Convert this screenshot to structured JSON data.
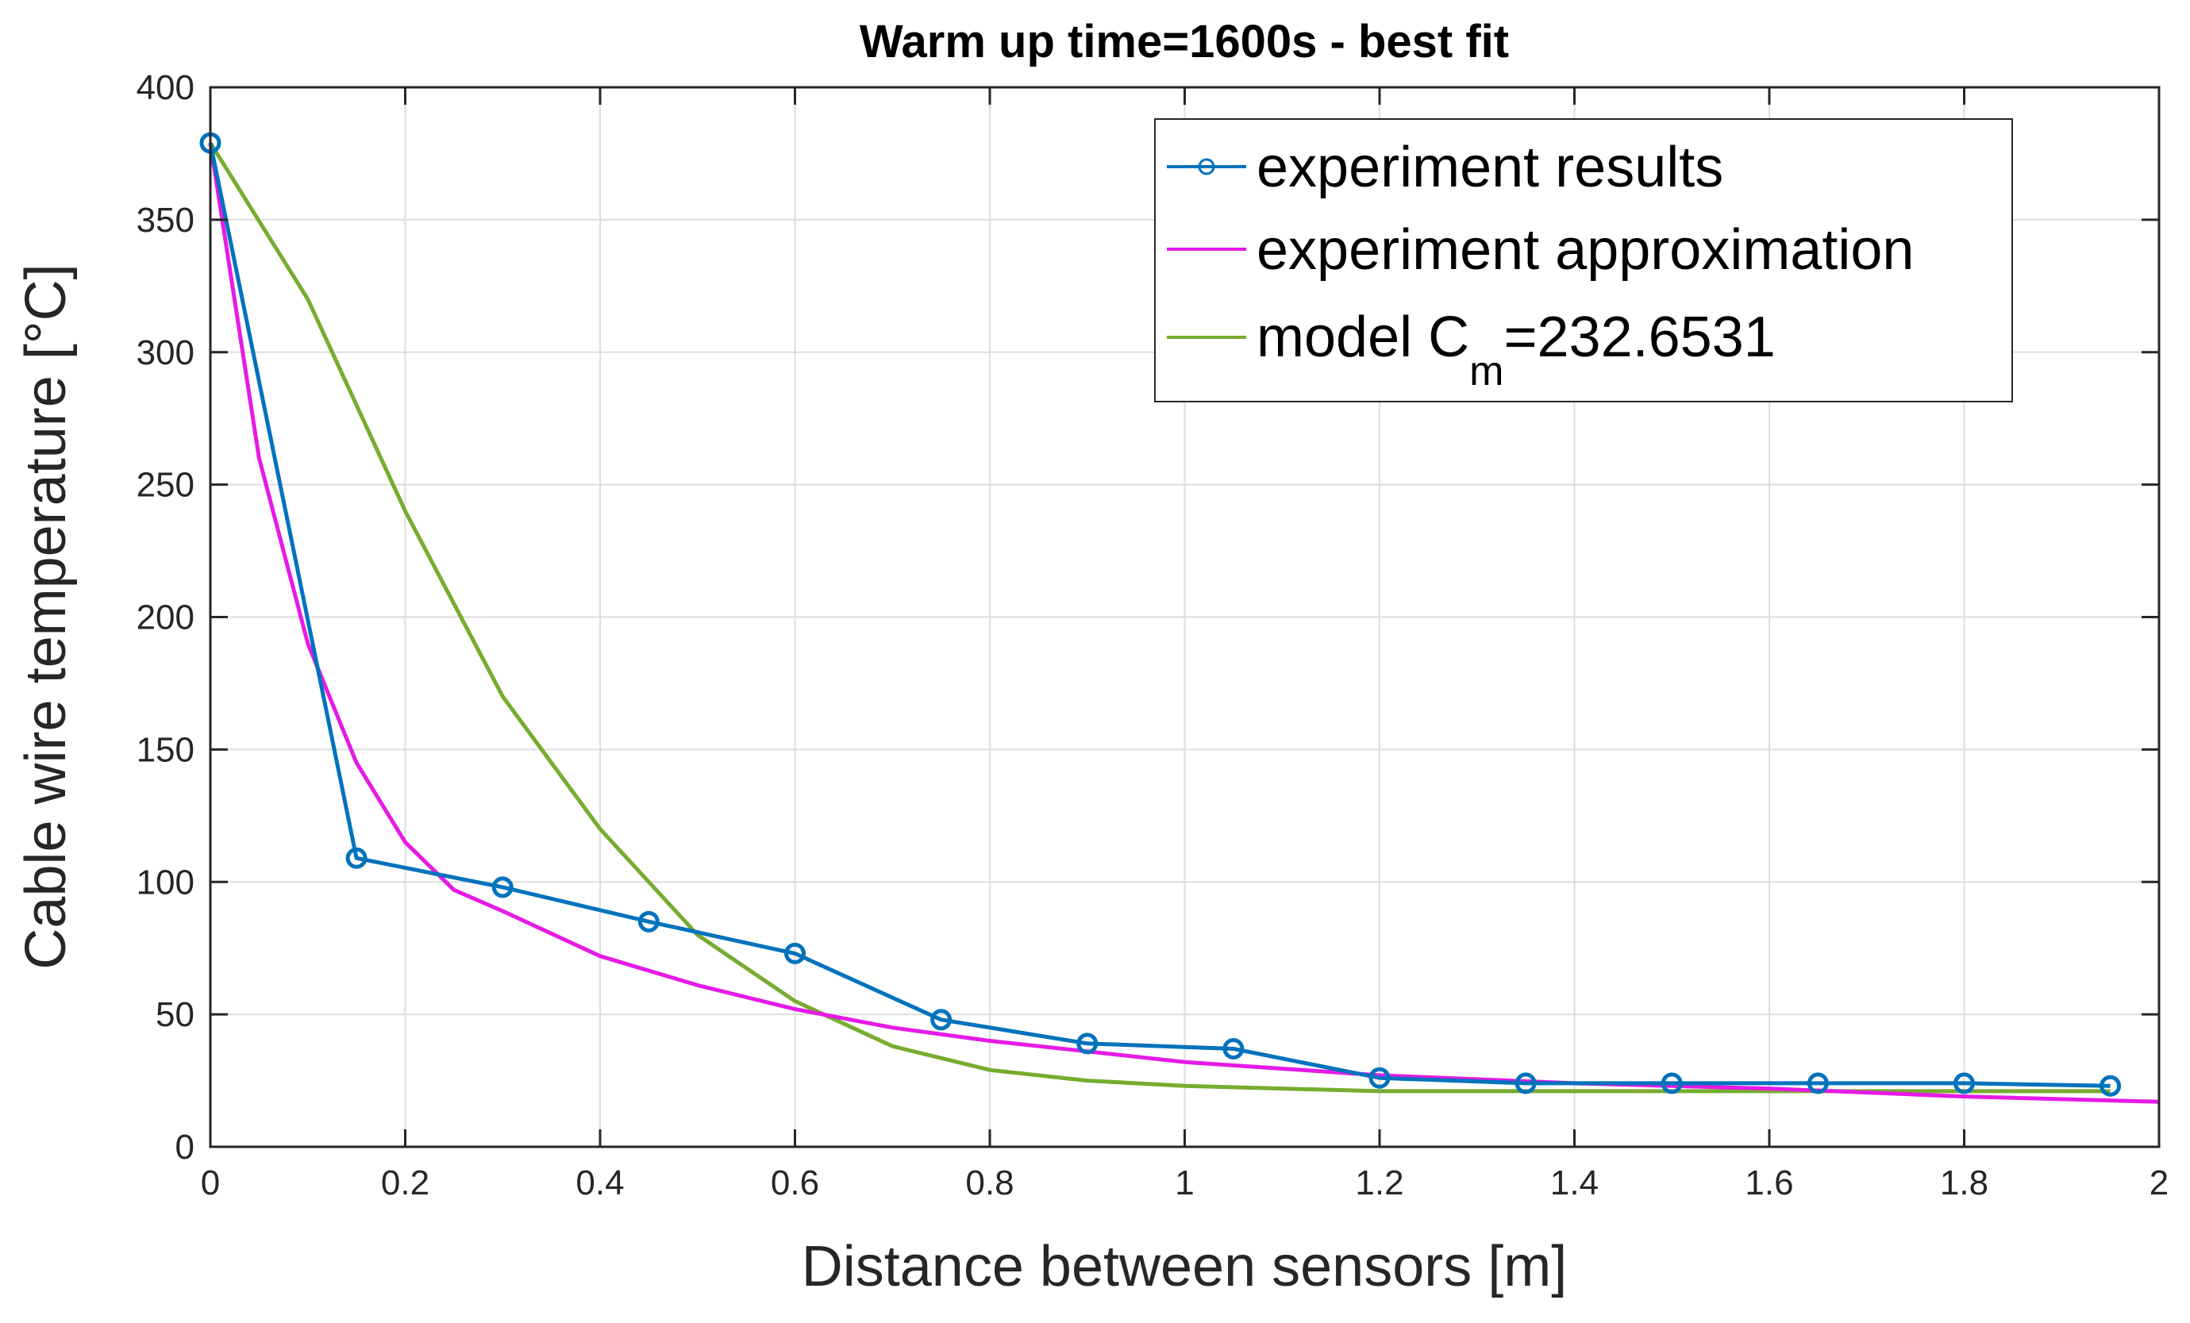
{
  "chart_data": {
    "type": "line",
    "title": "Warm up time=1600s - best fit",
    "xlabel": "Distance between sensors [m]",
    "ylabel": "Cable wire temperature [°C]",
    "xlim": [
      0,
      2
    ],
    "ylim": [
      0,
      400
    ],
    "x_ticks": [
      "0",
      "0.2",
      "0.4",
      "0.6",
      "0.8",
      "1",
      "1.2",
      "1.4",
      "1.6",
      "1.8",
      "2"
    ],
    "y_ticks": [
      "0",
      "50",
      "100",
      "150",
      "200",
      "250",
      "300",
      "350",
      "400"
    ],
    "grid": true,
    "legend_position": "top-right",
    "series": [
      {
        "name": "experiment results",
        "color": "#0072BD",
        "marker": "circle",
        "x": [
          0,
          0.15,
          0.3,
          0.45,
          0.6,
          0.75,
          0.9,
          1.05,
          1.2,
          1.35,
          1.5,
          1.65,
          1.8,
          1.95
        ],
        "y": [
          379,
          109,
          98,
          85,
          73,
          48,
          39,
          37,
          26,
          24,
          24,
          24,
          24,
          23
        ]
      },
      {
        "name": "experiment approximation",
        "color": "#E61AE6",
        "marker": "none",
        "x": [
          0,
          0.05,
          0.1,
          0.15,
          0.2,
          0.25,
          0.3,
          0.4,
          0.5,
          0.6,
          0.7,
          0.8,
          0.9,
          1.0,
          1.2,
          1.4,
          1.6,
          1.8,
          2.0
        ],
        "y": [
          379,
          260,
          190,
          145,
          115,
          97,
          89,
          72,
          61,
          52,
          45,
          40,
          36,
          32,
          27,
          24,
          22,
          19,
          17
        ]
      },
      {
        "name": "model C_m=232.6531",
        "legend_main": "model C",
        "legend_sub": "m",
        "legend_tail": "=232.6531",
        "color": "#77AC30",
        "marker": "none",
        "x": [
          0,
          0.1,
          0.2,
          0.3,
          0.4,
          0.5,
          0.6,
          0.7,
          0.8,
          0.9,
          1.0,
          1.1,
          1.2,
          1.4,
          1.6,
          1.8,
          1.95
        ],
        "y": [
          379,
          320,
          240,
          170,
          120,
          80,
          55,
          38,
          29,
          25,
          23,
          22,
          21,
          21,
          21,
          21,
          21
        ]
      }
    ]
  }
}
